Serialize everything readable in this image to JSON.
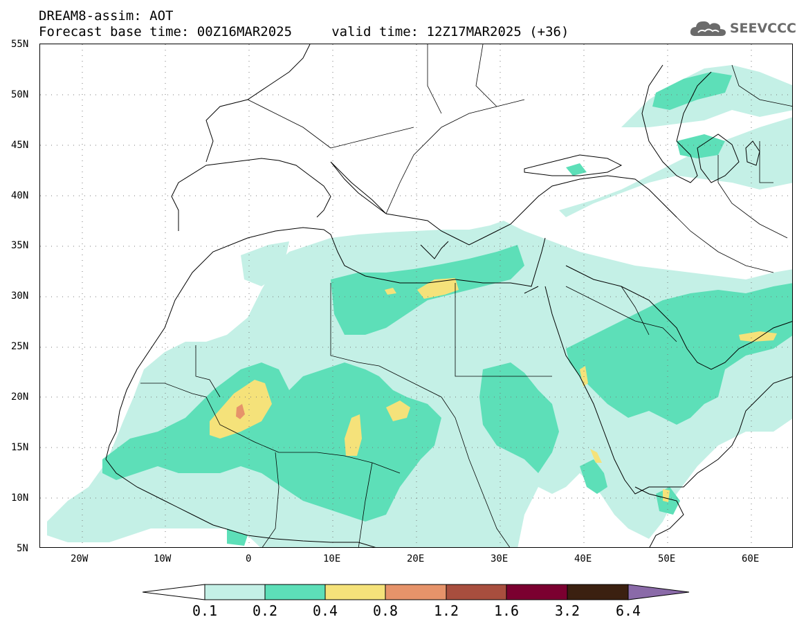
{
  "title": {
    "line1": "DREAM8-assim: AOT",
    "line2": "Forecast base time: 00Z16MAR2025     valid time: 12Z17MAR2025 (+36)"
  },
  "logo": {
    "icon": "cloud-icon",
    "text": "SEEVCCC",
    "color": "#6b6b6b"
  },
  "map": {
    "projection": "cylindrical equidistant",
    "lon_range": [
      -25,
      65
    ],
    "lat_range": [
      5,
      55
    ],
    "grid": "dotted",
    "lat_labels": [
      "55N",
      "50N",
      "45N",
      "40N",
      "35N",
      "30N",
      "25N",
      "20N",
      "15N",
      "10N",
      "5N"
    ],
    "lon_labels": [
      "20W",
      "10W",
      "0",
      "10E",
      "20E",
      "30E",
      "40E",
      "50E",
      "60E"
    ],
    "field": "Aerosol Optical Thickness (AOT)"
  },
  "colorbar": {
    "levels": [
      "0.1",
      "0.2",
      "0.4",
      "0.8",
      "1.2",
      "1.6",
      "3.2",
      "6.4"
    ],
    "colors": [
      "#ffffff",
      "#c4f0e6",
      "#5ddfb8",
      "#f5e27a",
      "#e6936a",
      "#a84e3e",
      "#7b0030",
      "#3b2010",
      "#8a6aa8"
    ]
  }
}
